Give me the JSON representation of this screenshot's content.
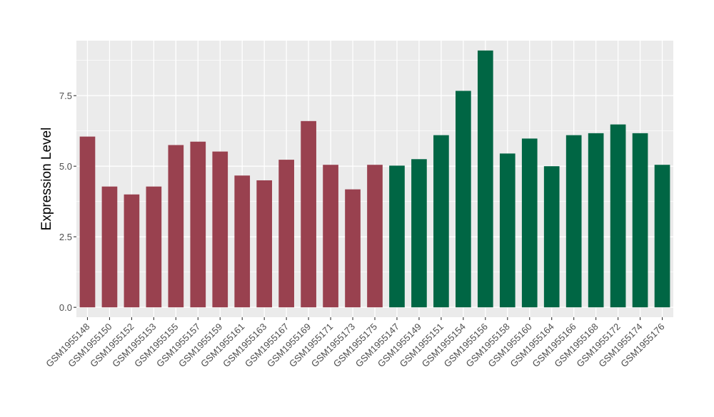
{
  "chart_data": {
    "type": "bar",
    "title": "",
    "xlabel": "",
    "ylabel": "Expression Level",
    "ylim": [
      -0.35,
      9.45
    ],
    "yticks": [
      0.0,
      2.5,
      5.0,
      7.5
    ],
    "ytick_labels": [
      "0.0",
      "2.5",
      "5.0",
      "7.5"
    ],
    "grid": true,
    "legend": "none",
    "categories": [
      "GSM1955148",
      "GSM1955150",
      "GSM1955152",
      "GSM1955153",
      "GSM1955155",
      "GSM1955157",
      "GSM1955159",
      "GSM1955161",
      "GSM1955163",
      "GSM1955167",
      "GSM1955169",
      "GSM1955171",
      "GSM1955173",
      "GSM1955175",
      "GSM1955147",
      "GSM1955149",
      "GSM1955151",
      "GSM1955154",
      "GSM1955156",
      "GSM1955158",
      "GSM1955160",
      "GSM1955164",
      "GSM1955166",
      "GSM1955168",
      "GSM1955172",
      "GSM1955174",
      "GSM1955176"
    ],
    "values": [
      6.05,
      4.28,
      4.0,
      4.28,
      5.75,
      5.87,
      5.52,
      4.67,
      4.5,
      5.23,
      6.6,
      5.05,
      4.18,
      5.05,
      5.02,
      5.25,
      6.1,
      7.67,
      9.1,
      5.45,
      5.98,
      5.0,
      6.1,
      6.17,
      6.48,
      6.17,
      5.05
    ],
    "bar_colors": [
      "#99414F",
      "#99414F",
      "#99414F",
      "#99414F",
      "#99414F",
      "#99414F",
      "#99414F",
      "#99414F",
      "#99414F",
      "#99414F",
      "#99414F",
      "#99414F",
      "#99414F",
      "#99414F",
      "#006644",
      "#006644",
      "#006644",
      "#006644",
      "#006644",
      "#006644",
      "#006644",
      "#006644",
      "#006644",
      "#006644",
      "#006644",
      "#006644",
      "#006644"
    ],
    "panel_background": "#EBEBEB",
    "grid_color": "#FFFFFF"
  }
}
